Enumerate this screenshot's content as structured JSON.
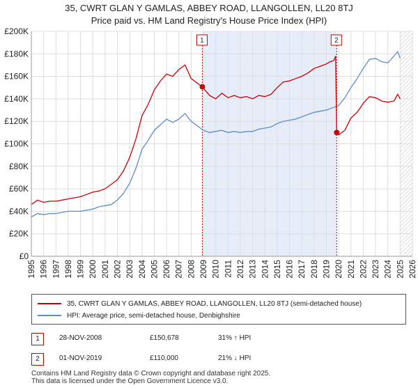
{
  "chart_data": {
    "type": "line",
    "title": "35, CWRT GLAN Y GAMLAS, ABBEY ROAD, LLANGOLLEN, LL20 8TJ",
    "subtitle": "Price paid vs. HM Land Registry's House Price Index (HPI)",
    "ylim": [
      0,
      200000
    ],
    "xlim": [
      1995,
      2026
    ],
    "yticks": [
      "£0",
      "£20K",
      "£40K",
      "£60K",
      "£80K",
      "£100K",
      "£120K",
      "£140K",
      "£160K",
      "£180K",
      "£200K"
    ],
    "xticks": [
      "1995",
      "1996",
      "1997",
      "1998",
      "1999",
      "2000",
      "2001",
      "2002",
      "2003",
      "2004",
      "2005",
      "2006",
      "2007",
      "2008",
      "2009",
      "2010",
      "2011",
      "2012",
      "2013",
      "2014",
      "2015",
      "2016",
      "2017",
      "2018",
      "2019",
      "2020",
      "2021",
      "2022",
      "2023",
      "2024",
      "2025",
      "2026"
    ],
    "series": [
      {
        "name": "35, CWRT GLAN Y GAMLAS, ABBEY ROAD, LLANGOLLEN, LL20 8TJ (semi-detached house)",
        "color": "#cc0000",
        "x": [
          1995.0,
          1995.5,
          1996.0,
          1996.5,
          1997.0,
          1997.5,
          1998.0,
          1998.5,
          1999.0,
          1999.5,
          2000.0,
          2000.5,
          2001.0,
          2001.5,
          2002.0,
          2002.5,
          2003.0,
          2003.5,
          2004.0,
          2004.5,
          2005.0,
          2005.5,
          2006.0,
          2006.5,
          2007.0,
          2007.5,
          2008.0,
          2008.5,
          2008.9,
          2009.5,
          2010.0,
          2010.5,
          2011.0,
          2011.5,
          2012.0,
          2012.5,
          2013.0,
          2013.5,
          2014.0,
          2014.5,
          2015.0,
          2015.5,
          2016.0,
          2016.5,
          2017.0,
          2017.5,
          2018.0,
          2018.5,
          2019.0,
          2019.3,
          2019.6,
          2019.75,
          2019.84,
          2020.0,
          2020.5,
          2021.0,
          2021.5,
          2022.0,
          2022.5,
          2023.0,
          2023.5,
          2024.0,
          2024.5,
          2024.8,
          2025.0
        ],
        "values": [
          46000,
          50000,
          48000,
          49000,
          49000,
          50000,
          51000,
          52000,
          53000,
          55000,
          57000,
          58000,
          60000,
          64000,
          68000,
          76000,
          88000,
          104000,
          125000,
          135000,
          148000,
          156000,
          162000,
          160000,
          166000,
          170000,
          158000,
          154000,
          150678,
          143000,
          140000,
          145000,
          141000,
          143000,
          141000,
          142000,
          140000,
          143000,
          142000,
          144000,
          150000,
          155000,
          156000,
          158000,
          160000,
          163000,
          167000,
          169000,
          171000,
          173000,
          174000,
          178000,
          110000,
          108000,
          112000,
          123000,
          128000,
          136000,
          142000,
          141000,
          138000,
          137000,
          138000,
          144000,
          140000
        ]
      },
      {
        "name": "HPI: Average price, semi-detached house, Denbighshire",
        "color": "#5b8ccc",
        "x": [
          1995.0,
          1995.5,
          1996.0,
          1996.5,
          1997.0,
          1997.5,
          1998.0,
          1998.5,
          1999.0,
          1999.5,
          2000.0,
          2000.5,
          2001.0,
          2001.5,
          2002.0,
          2002.5,
          2003.0,
          2003.5,
          2004.0,
          2004.5,
          2005.0,
          2005.5,
          2006.0,
          2006.5,
          2007.0,
          2007.5,
          2008.0,
          2008.5,
          2009.0,
          2009.5,
          2010.0,
          2010.5,
          2011.0,
          2011.5,
          2012.0,
          2012.5,
          2013.0,
          2013.5,
          2014.0,
          2014.5,
          2015.0,
          2015.5,
          2016.0,
          2016.5,
          2017.0,
          2017.5,
          2018.0,
          2018.5,
          2019.0,
          2019.5,
          2020.0,
          2020.5,
          2021.0,
          2021.5,
          2022.0,
          2022.5,
          2023.0,
          2023.5,
          2024.0,
          2024.5,
          2024.8,
          2025.0
        ],
        "values": [
          35000,
          38000,
          37000,
          38000,
          38000,
          39000,
          40000,
          40000,
          40000,
          41000,
          42000,
          44000,
          45000,
          46000,
          50000,
          56000,
          65000,
          78000,
          95000,
          103000,
          112000,
          117000,
          122000,
          119000,
          122000,
          127000,
          120000,
          116000,
          112000,
          110000,
          111000,
          112000,
          110000,
          111000,
          110000,
          111000,
          111000,
          113000,
          114000,
          115000,
          118000,
          120000,
          121000,
          122000,
          124000,
          126000,
          128000,
          129000,
          130000,
          132000,
          134000,
          141000,
          150000,
          158000,
          167000,
          175000,
          176000,
          173000,
          172000,
          178000,
          182000,
          176000
        ]
      }
    ],
    "annotations": [
      {
        "label": "1",
        "x": 2008.91,
        "value": 150678
      },
      {
        "label": "2",
        "x": 2019.84,
        "value": 110000
      }
    ]
  },
  "legend": {
    "line1": "35, CWRT GLAN Y GAMLAS, ABBEY ROAD, LLANGOLLEN, LL20 8TJ (semi-detached house)",
    "line2": "HPI: Average price, semi-detached house, Denbighshire"
  },
  "sales": [
    {
      "num": "1",
      "date": "28-NOV-2008",
      "price": "£150,678",
      "hpi": "31% ↑ HPI"
    },
    {
      "num": "2",
      "date": "01-NOV-2019",
      "price": "£110,000",
      "hpi": "21% ↓ HPI"
    }
  ],
  "footer": {
    "line1": "Contains HM Land Registry data © Crown copyright and database right 2025.",
    "line2": "This data is licensed under the Open Government Licence v3.0."
  },
  "colors": {
    "price": "#cc0000",
    "hpi": "#5b8ccc",
    "shade": "#e6ecf8"
  }
}
